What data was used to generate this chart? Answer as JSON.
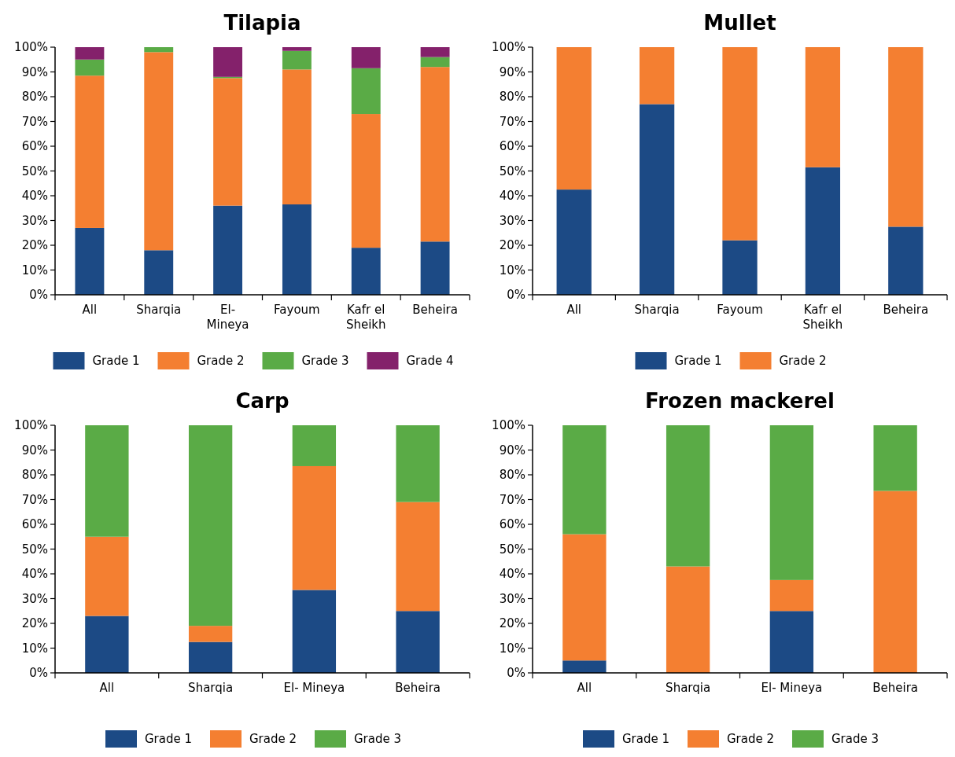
{
  "chart_data": [
    {
      "type": "bar",
      "stacked": true,
      "title": "Tilapia",
      "categories": [
        "All",
        "Sharqia",
        "El- Mineya",
        "Fayoum",
        "Kafr el Sheikh",
        "Beheira"
      ],
      "ylim": [
        0,
        100
      ],
      "yticks": [
        {
          "value": 0,
          "label": "0%"
        },
        {
          "value": 10,
          "label": "10%"
        },
        {
          "value": 20,
          "label": "20%"
        },
        {
          "value": 30,
          "label": "30%"
        },
        {
          "value": 40,
          "label": "40%"
        },
        {
          "value": 50,
          "label": "50%"
        },
        {
          "value": 60,
          "label": "60%"
        },
        {
          "value": 70,
          "label": "70%"
        },
        {
          "value": 80,
          "label": "80%"
        },
        {
          "value": 90,
          "label": "90%"
        },
        {
          "value": 100,
          "label": "100%"
        }
      ],
      "legend": "bottom",
      "series": [
        {
          "name": "Grade 1",
          "color": "#1c4a85",
          "values": [
            27,
            18,
            36,
            36.5,
            19,
            21.5
          ]
        },
        {
          "name": "Grade 2",
          "color": "#f47f31",
          "values": [
            61.5,
            80,
            51.5,
            54.5,
            54,
            70.5
          ]
        },
        {
          "name": "Grade 3",
          "color": "#5aab46",
          "values": [
            6.5,
            2,
            0.5,
            7.5,
            18.5,
            4
          ]
        },
        {
          "name": "Grade 4",
          "color": "#84216b",
          "values": [
            5,
            0,
            12,
            1.5,
            8.5,
            4
          ]
        }
      ]
    },
    {
      "type": "bar",
      "stacked": true,
      "title": "Mullet",
      "categories": [
        "All",
        "Sharqia",
        "Fayoum",
        "Kafr el Sheikh",
        "Beheira"
      ],
      "ylim": [
        0,
        100
      ],
      "yticks": [
        {
          "value": 0,
          "label": "0%"
        },
        {
          "value": 10,
          "label": "10%"
        },
        {
          "value": 20,
          "label": "20%"
        },
        {
          "value": 30,
          "label": "30%"
        },
        {
          "value": 40,
          "label": "40%"
        },
        {
          "value": 50,
          "label": "50%"
        },
        {
          "value": 60,
          "label": "60%"
        },
        {
          "value": 70,
          "label": "70%"
        },
        {
          "value": 80,
          "label": "80%"
        },
        {
          "value": 90,
          "label": "90%"
        },
        {
          "value": 100,
          "label": "100%"
        }
      ],
      "legend": "bottom",
      "series": [
        {
          "name": "Grade 1",
          "color": "#1c4a85",
          "values": [
            42.5,
            77,
            22,
            51.5,
            27.5
          ]
        },
        {
          "name": "Grade 2",
          "color": "#f47f31",
          "values": [
            57.5,
            23,
            78,
            48.5,
            72.5
          ]
        }
      ]
    },
    {
      "type": "bar",
      "stacked": true,
      "title": "Carp",
      "categories": [
        "All",
        "Sharqia",
        "El- Mineya",
        "Beheira"
      ],
      "ylim": [
        0,
        100
      ],
      "yticks": [
        {
          "value": 0,
          "label": "0%"
        },
        {
          "value": 10,
          "label": "10%"
        },
        {
          "value": 20,
          "label": "20%"
        },
        {
          "value": 30,
          "label": "30%"
        },
        {
          "value": 40,
          "label": "40%"
        },
        {
          "value": 50,
          "label": "50%"
        },
        {
          "value": 60,
          "label": "60%"
        },
        {
          "value": 70,
          "label": "70%"
        },
        {
          "value": 80,
          "label": "80%"
        },
        {
          "value": 90,
          "label": "90%"
        },
        {
          "value": 100,
          "label": "100%"
        }
      ],
      "legend": "bottom",
      "series": [
        {
          "name": "Grade 1",
          "color": "#1c4a85",
          "values": [
            23,
            12.5,
            33.5,
            25
          ]
        },
        {
          "name": "Grade 2",
          "color": "#f47f31",
          "values": [
            32,
            6.5,
            50,
            44
          ]
        },
        {
          "name": "Grade 3",
          "color": "#5aab46",
          "values": [
            45,
            81,
            16.5,
            31
          ]
        }
      ]
    },
    {
      "type": "bar",
      "stacked": true,
      "title": "Frozen mackerel",
      "categories": [
        "All",
        "Sharqia",
        "El- Mineya",
        "Beheira"
      ],
      "ylim": [
        0,
        100
      ],
      "yticks": [
        {
          "value": 0,
          "label": "0%"
        },
        {
          "value": 10,
          "label": "10%"
        },
        {
          "value": 20,
          "label": "20%"
        },
        {
          "value": 30,
          "label": "30%"
        },
        {
          "value": 40,
          "label": "40%"
        },
        {
          "value": 50,
          "label": "50%"
        },
        {
          "value": 60,
          "label": "60%"
        },
        {
          "value": 70,
          "label": "70%"
        },
        {
          "value": 80,
          "label": "80%"
        },
        {
          "value": 90,
          "label": "90%"
        },
        {
          "value": 100,
          "label": "100%"
        }
      ],
      "legend": "bottom",
      "series": [
        {
          "name": "Grade 1",
          "color": "#1c4a85",
          "values": [
            5,
            0,
            25,
            0
          ]
        },
        {
          "name": "Grade 2",
          "color": "#f47f31",
          "values": [
            51,
            43,
            12.5,
            73.5
          ]
        },
        {
          "name": "Grade 3",
          "color": "#5aab46",
          "values": [
            44,
            57,
            62.5,
            26.5
          ]
        }
      ]
    }
  ]
}
